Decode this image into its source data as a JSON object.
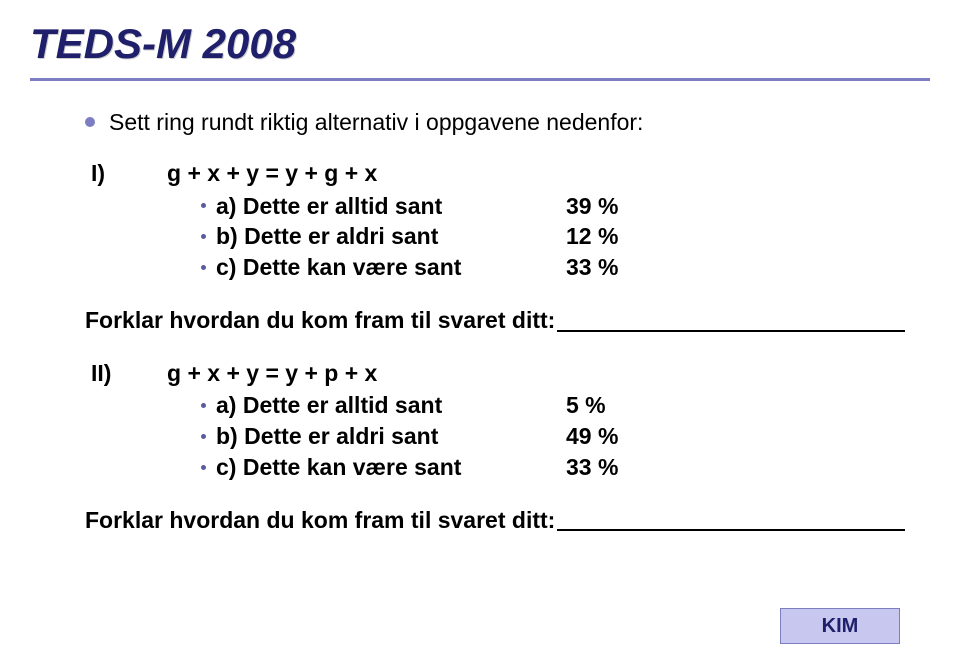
{
  "title": "TEDS-M 2008",
  "intro": "Sett ring rundt riktig alternativ i oppgavene nedenfor:",
  "q1": {
    "label": "I)",
    "expr": "g + x + y = y + g + x",
    "opts": [
      {
        "text": "a) Dette er alltid sant",
        "pct": "39 %"
      },
      {
        "text": "b) Dette er aldri sant",
        "pct": "12 %"
      },
      {
        "text": "c) Dette kan være sant",
        "pct": "33 %"
      }
    ]
  },
  "explain_label": "Forklar hvordan du kom fram til svaret ditt:",
  "q2": {
    "label": "II)",
    "expr": "g + x + y = y + p + x",
    "opts": [
      {
        "text": "a) Dette er alltid sant",
        "pct": "5 %"
      },
      {
        "text": "b) Dette er aldri sant",
        "pct": "49 %"
      },
      {
        "text": "c) Dette kan være sant",
        "pct": "33 %"
      }
    ]
  },
  "kim": "KIM",
  "colors": {
    "title_color": "#1f1f6b",
    "accent": "#7d7dc2",
    "kim_bg": "#c7c7f0"
  }
}
